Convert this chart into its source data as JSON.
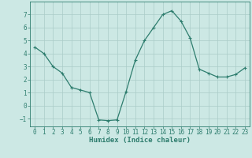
{
  "x": [
    0,
    1,
    2,
    3,
    4,
    5,
    6,
    7,
    8,
    9,
    10,
    11,
    12,
    13,
    14,
    15,
    16,
    17,
    18,
    19,
    20,
    21,
    22,
    23
  ],
  "y": [
    4.5,
    4.0,
    3.0,
    2.5,
    1.4,
    1.2,
    1.0,
    -1.1,
    -1.15,
    -1.1,
    1.1,
    3.5,
    5.0,
    6.0,
    7.0,
    7.3,
    6.5,
    5.2,
    2.8,
    2.5,
    2.2,
    2.2,
    2.4,
    2.9
  ],
  "line_color": "#2e7d6e",
  "marker": "+",
  "marker_size": 3,
  "marker_color": "#2e7d6e",
  "bg_color": "#cce8e4",
  "grid_color": "#aaccc8",
  "tick_label_color": "#2e7d6e",
  "xlabel": "Humidex (Indice chaleur)",
  "xlabel_color": "#2e7d6e",
  "xlim": [
    -0.5,
    23.5
  ],
  "ylim": [
    -1.6,
    8.0
  ],
  "yticks": [
    -1,
    0,
    1,
    2,
    3,
    4,
    5,
    6,
    7
  ],
  "xticks": [
    0,
    1,
    2,
    3,
    4,
    5,
    6,
    7,
    8,
    9,
    10,
    11,
    12,
    13,
    14,
    15,
    16,
    17,
    18,
    19,
    20,
    21,
    22,
    23
  ],
  "spine_color": "#2e7d6e",
  "font_size_label": 6.5,
  "font_size_tick": 5.5,
  "line_width": 0.9
}
